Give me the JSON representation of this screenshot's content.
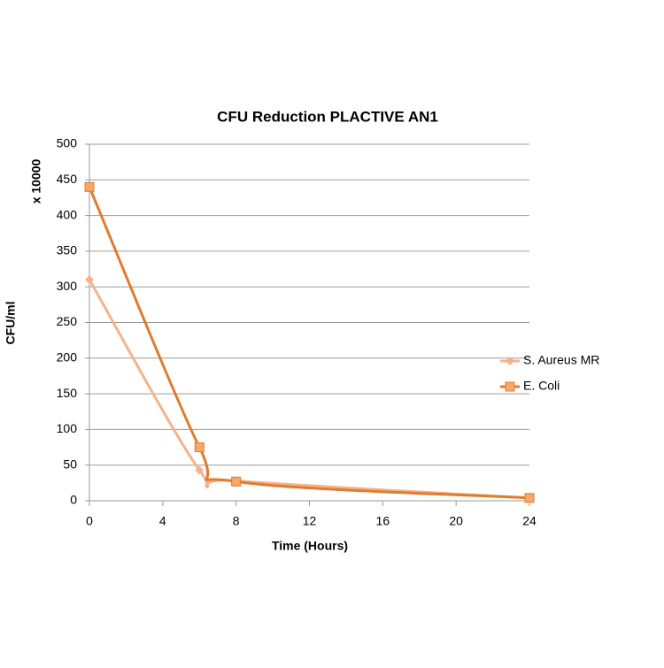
{
  "chart_data": {
    "type": "line",
    "title": "CFU Reduction PLACTIVE AN1",
    "x_label": "Time (Hours)",
    "y_label": "CFU/ml",
    "y_unit_label": "x 10000",
    "x": [
      0,
      6,
      8,
      24
    ],
    "series": [
      {
        "name": "S. Aureus MR",
        "color": "#f5b28c",
        "marker": "diamond",
        "values": [
          310,
          43,
          28,
          4
        ]
      },
      {
        "name": "E. Coli",
        "color": "#e07c30",
        "marker": "square",
        "values": [
          440,
          75,
          27,
          4
        ]
      }
    ],
    "xlim": [
      0,
      24
    ],
    "xticks": [
      0,
      4,
      8,
      12,
      16,
      20,
      24
    ],
    "ylim": [
      0,
      500
    ],
    "yticks": [
      0,
      50,
      100,
      150,
      200,
      250,
      300,
      350,
      400,
      450,
      500
    ],
    "grid": true,
    "smooth": true,
    "legend": "right"
  }
}
